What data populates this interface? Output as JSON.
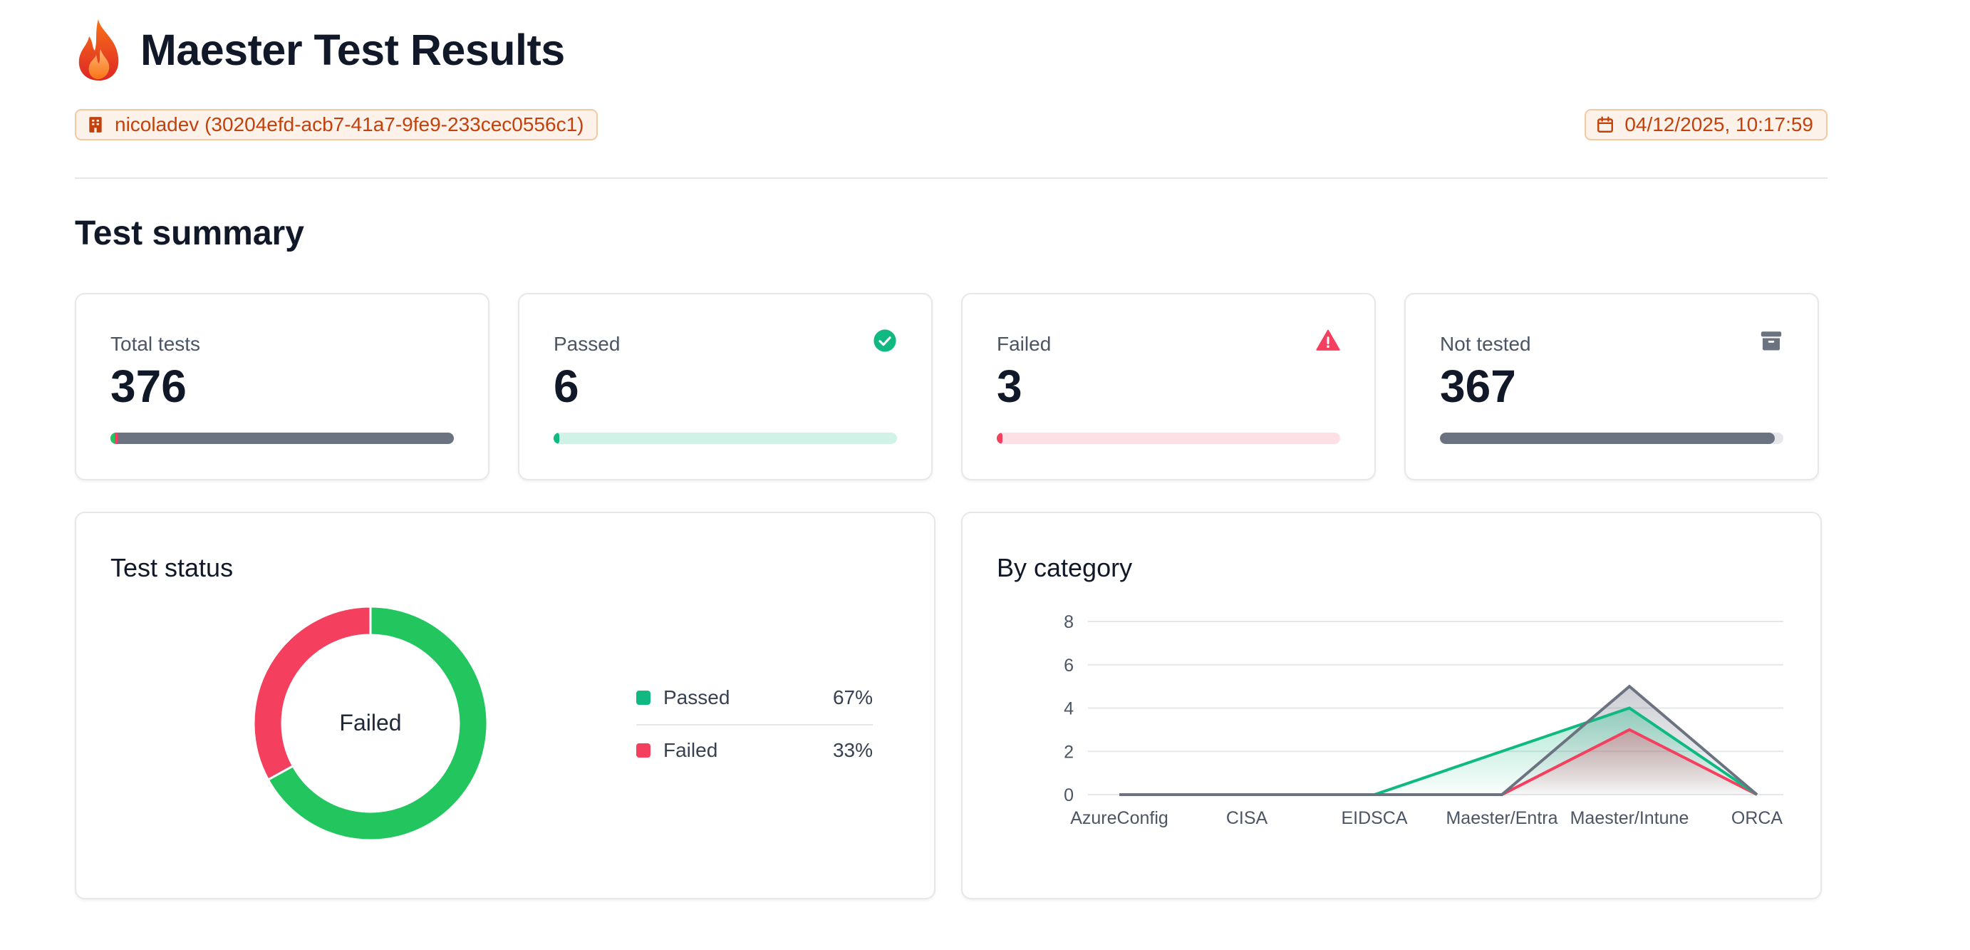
{
  "header": {
    "title": "Maester Test Results",
    "logo_icon": "flame-icon"
  },
  "tenant_chip": {
    "text": "nicoladev (30204efd-acb7-41a7-9fe9-233cec0556c1)",
    "icon": "building-icon"
  },
  "date_chip": {
    "text": "04/12/2025, 10:17:59",
    "icon": "calendar-icon"
  },
  "summary": {
    "title": "Test summary",
    "cards": [
      {
        "label": "Total tests",
        "value": "376",
        "progress": 1.0,
        "icon": ""
      },
      {
        "label": "Passed",
        "value": "6",
        "progress": 0.016,
        "icon": "check-circle-icon"
      },
      {
        "label": "Failed",
        "value": "3",
        "progress": 0.008,
        "icon": "alert-triangle-icon"
      },
      {
        "label": "Not tested",
        "value": "367",
        "progress": 0.976,
        "icon": "archive-icon"
      }
    ]
  },
  "status_panel": {
    "title": "Test status",
    "center_label": "Failed",
    "legend": [
      {
        "name": "Passed",
        "pct": "67%",
        "color": "#10b981"
      },
      {
        "name": "Failed",
        "pct": "33%",
        "color": "#f43f5e"
      }
    ]
  },
  "colors": {
    "accent": "#c2410c",
    "passed": "#22c55e",
    "failed": "#f43f5e",
    "not_tested": "#6b7280",
    "passed_track": "#d1f2e6",
    "failed_track": "#fde0e5"
  },
  "chart_data": [
    {
      "type": "pie",
      "categories": [
        "Passed",
        "Failed"
      ],
      "values": [
        67,
        33
      ]
    },
    {
      "type": "area",
      "title": "By category",
      "categories": [
        "AzureConfig",
        "CISA",
        "EIDSCA",
        "Maester/Entra",
        "Maester/Intune",
        "ORCA"
      ],
      "ylim": [
        0,
        8
      ],
      "yticks": [
        "0",
        "2",
        "4",
        "6",
        "8"
      ],
      "grid": true,
      "series": [
        {
          "values": [
            0,
            0,
            0,
            0,
            5,
            0
          ],
          "color": "#6b7280"
        },
        {
          "values": [
            0,
            0,
            0,
            2,
            4,
            0
          ],
          "color": "#10b981"
        },
        {
          "values": [
            0,
            0,
            0,
            0,
            3,
            0
          ],
          "color": "#f43f5e"
        }
      ]
    }
  ]
}
